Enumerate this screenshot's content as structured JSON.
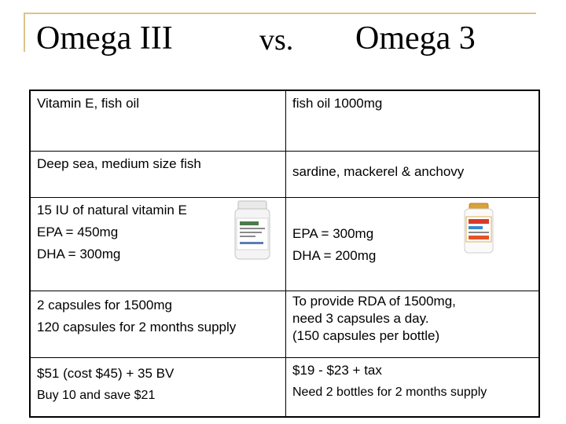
{
  "title": {
    "left": "Omega III",
    "vs": "vs.",
    "right": "Omega 3"
  },
  "rows": [
    {
      "left": [
        "Vitamin E, fish oil"
      ],
      "right": [
        "fish oil 1000mg"
      ]
    },
    {
      "left": [
        "Deep sea, medium size fish"
      ],
      "right": [
        "sardine, mackerel & anchovy"
      ]
    },
    {
      "left": [
        "15 IU of natural vitamin E",
        "EPA = 450mg",
        "DHA = 300mg"
      ],
      "right": [
        "EPA = 300mg",
        "DHA = 200mg"
      ]
    },
    {
      "left": [
        "2 capsules for 1500mg",
        "120 capsules for 2 months supply"
      ],
      "right": [
        "To provide RDA of 1500mg,",
        "need 3 capsules a day.",
        "(150 capsules per bottle)"
      ]
    },
    {
      "left": [
        "$51 (cost $45) + 35 BV",
        "Buy 10 and save $21"
      ],
      "right": [
        "$19 - $23 + tax",
        "Need 2 bottles for 2 months supply"
      ]
    }
  ],
  "images": {
    "left_bottle": "supplement-bottle-icon",
    "right_bottle": "omega3-bottle-icon"
  },
  "colors": {
    "frame": "#d8c58a",
    "text": "#000000",
    "border": "#000000"
  }
}
